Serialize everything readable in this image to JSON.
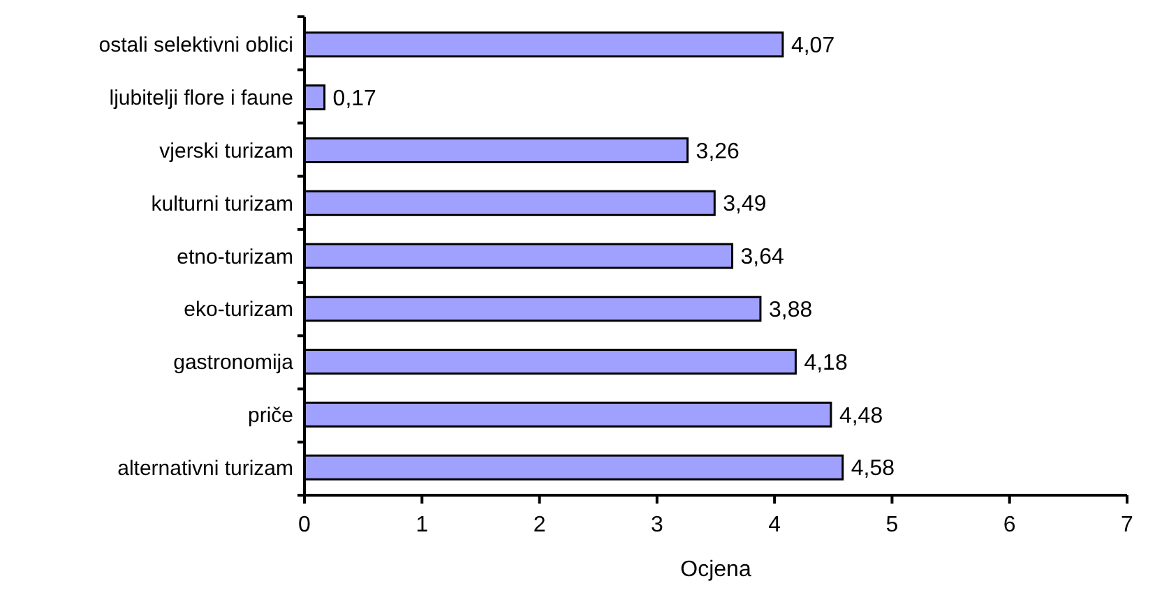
{
  "chart_data": {
    "type": "bar",
    "orientation": "horizontal",
    "xlabel": "Ocjena",
    "categories": [
      "ostali selektivni oblici",
      "ljubitelji flore i faune",
      "vjerski turizam",
      "kulturni turizam",
      "etno-turizam",
      "eko-turizam",
      "gastronomija",
      "priče",
      "alternativni turizam"
    ],
    "values": [
      4.07,
      0.17,
      3.26,
      3.49,
      3.64,
      3.88,
      4.18,
      4.48,
      4.58
    ],
    "value_labels": [
      "4,07",
      "0,17",
      "3,26",
      "3,49",
      "3,64",
      "3,88",
      "4,18",
      "4,48",
      "4,58"
    ],
    "color": "#a0a0ff",
    "xlim": [
      0,
      7
    ],
    "xticks": [
      0,
      1,
      2,
      3,
      4,
      5,
      6,
      7
    ]
  }
}
